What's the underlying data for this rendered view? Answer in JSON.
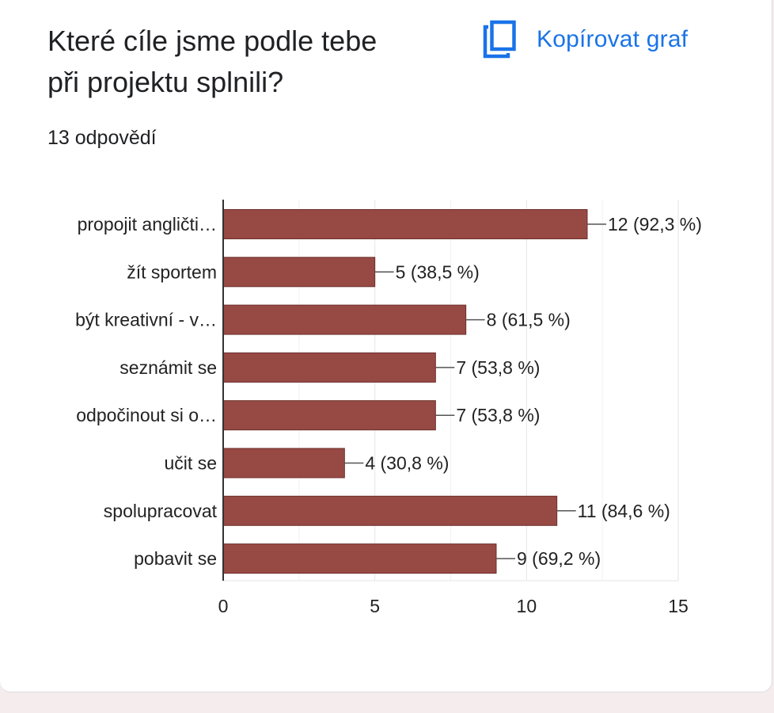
{
  "card": {
    "title_line1": "Které cíle jsme podle tebe",
    "title_line2": "při projektu splnili?",
    "copy_label": "Kopírovat graf",
    "copy_icon": "copy-icon",
    "responses": "13 odpovědí"
  },
  "colors": {
    "bar": "#974944",
    "accent": "#1a73e8",
    "grid": "#e6e6e6",
    "axis": "#333333"
  },
  "chart_data": {
    "type": "bar",
    "orientation": "horizontal",
    "categories": [
      "propojit angličti…",
      "žít sportem",
      "být kreativní - v…",
      "seznámit se",
      "odpočinout si o…",
      "učit se",
      "spolupracovat",
      "pobavit se"
    ],
    "values": [
      12,
      5,
      8,
      7,
      7,
      4,
      11,
      9
    ],
    "data_labels": [
      "12 (92,3 %)",
      "5 (38,5 %)",
      "8 (61,5 %)",
      "7 (53,8 %)",
      "7 (53,8 %)",
      "4 (30,8 %)",
      "11 (84,6 %)",
      "9 (69,2 %)"
    ],
    "xlim": [
      0,
      15
    ],
    "xticks": [
      0,
      5,
      10,
      15
    ],
    "grid": true,
    "legend": "none"
  }
}
